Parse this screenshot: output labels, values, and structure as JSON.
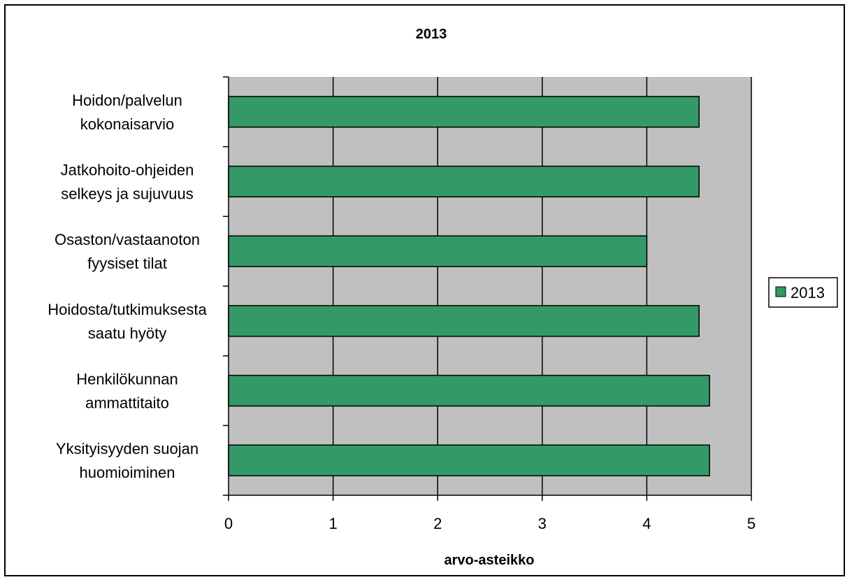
{
  "chart_data": {
    "type": "bar",
    "orientation": "horizontal",
    "title": "2013",
    "xlabel": "arvo-asteikko",
    "ylabel": "",
    "xlim": [
      0,
      5
    ],
    "xticks": [
      "0",
      "1",
      "2",
      "3",
      "4",
      "5"
    ],
    "grid": true,
    "legend_position": "right",
    "categories": [
      [
        "Hoidon/palvelun",
        "kokonaisarvio"
      ],
      [
        "Jatkohoito-ohjeiden",
        "selkeys ja sujuvuus"
      ],
      [
        "Osaston/vastaanoton",
        "fyysiset tilat"
      ],
      [
        "Hoidosta/tutkimuksesta",
        "saatu hyöty"
      ],
      [
        "Henkilökunnan",
        "ammattitaito"
      ],
      [
        "Yksityisyyden suojan",
        "huomioiminen"
      ]
    ],
    "series": [
      {
        "name": "2013",
        "values": [
          4.5,
          4.5,
          4.0,
          4.5,
          4.6,
          4.6
        ]
      }
    ],
    "colors": {
      "bar": "#339966",
      "plot_background": "#c0c0c0",
      "gridline": "#000000"
    }
  }
}
